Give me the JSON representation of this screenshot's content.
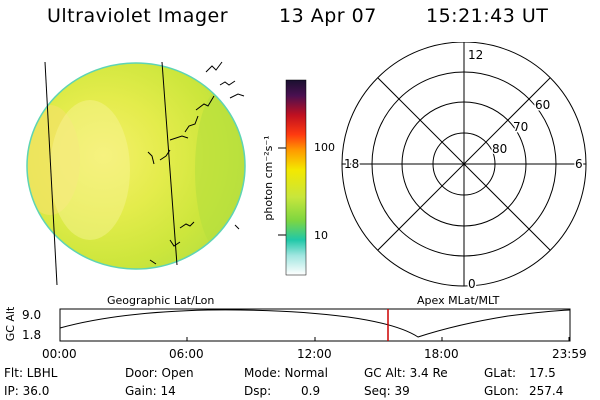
{
  "header": {
    "title": "Ultraviolet Imager",
    "date": "13 Apr 07",
    "time": "15:21:43 UT"
  },
  "colorbar": {
    "unit_label": "photon cm⁻²s⁻¹",
    "tick_labels": [
      "100",
      "10"
    ]
  },
  "polar_plot": {
    "mlt_labels": [
      "12",
      "18",
      "6",
      "0"
    ],
    "mlat_labels": [
      "60",
      "70",
      "80"
    ]
  },
  "timeline": {
    "ylabel": "GC Alt",
    "yticks": [
      "9.0",
      "1.8"
    ],
    "left_caption": "Geographic Lat/Lon",
    "right_caption": "Apex MLat/MLT",
    "xticks": [
      "00:00",
      "06:00",
      "12:00",
      "18:00",
      "23:59"
    ],
    "cursor_color": "#cc0000"
  },
  "footer": {
    "flt": "Flt: LBHL",
    "ip": "IP: 36.0",
    "door": "Door: Open",
    "gain": "Gain: 14",
    "mode": "Mode: Normal",
    "dsp_label": "Dsp:",
    "dsp_value": "0.9",
    "gc_alt": "GC Alt: 3.4 Re",
    "seq": "Seq: 39",
    "glat_label": "GLat:",
    "glat_value": "17.5",
    "glon_label": "GLon:",
    "glon_value": "257.4"
  }
}
